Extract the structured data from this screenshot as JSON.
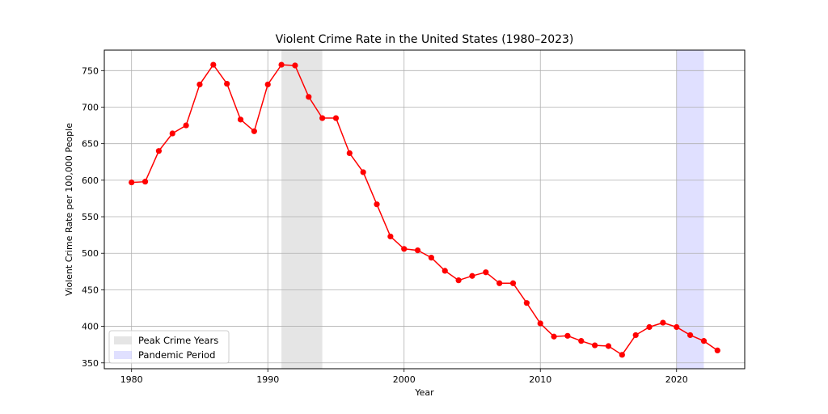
{
  "chart_data": {
    "type": "line",
    "title": "Violent Crime Rate in the United States (1980–2023)",
    "xlabel": "Year",
    "ylabel": "Violent Crime Rate per 100,000 People",
    "xlim": [
      1978,
      2025
    ],
    "ylim": [
      342,
      778
    ],
    "x_ticks": [
      1980,
      1990,
      2000,
      2010,
      2020
    ],
    "y_ticks": [
      350,
      400,
      450,
      500,
      550,
      600,
      650,
      700,
      750
    ],
    "grid": true,
    "legend_position": "lower-left",
    "series": [
      {
        "color": "#ff0000",
        "marker": "circle",
        "x": [
          1980,
          1981,
          1982,
          1983,
          1984,
          1985,
          1986,
          1987,
          1988,
          1989,
          1990,
          1991,
          1992,
          1993,
          1994,
          1995,
          1996,
          1997,
          1998,
          1999,
          2000,
          2001,
          2002,
          2003,
          2004,
          2005,
          2006,
          2007,
          2008,
          2009,
          2010,
          2011,
          2012,
          2013,
          2014,
          2015,
          2016,
          2017,
          2018,
          2019,
          2020,
          2021,
          2022,
          2023
        ],
        "values": [
          597,
          598,
          640,
          664,
          675,
          731,
          758,
          732,
          683,
          667,
          731,
          758,
          757,
          714,
          685,
          685,
          637,
          611,
          567,
          523,
          506,
          504,
          494,
          476,
          463,
          469,
          474,
          459,
          459,
          432,
          404,
          386,
          387,
          380,
          374,
          373,
          361,
          388,
          399,
          405,
          399,
          388,
          380,
          367
        ]
      }
    ],
    "shaded_regions": [
      {
        "label": "Peak Crime Years",
        "start": 1991,
        "end": 1994,
        "color": "#d3d3d3",
        "opacity": 0.6
      },
      {
        "label": "Pandemic Period",
        "start": 2020,
        "end": 2022,
        "color": "#0000ff",
        "opacity": 0.12
      }
    ]
  }
}
